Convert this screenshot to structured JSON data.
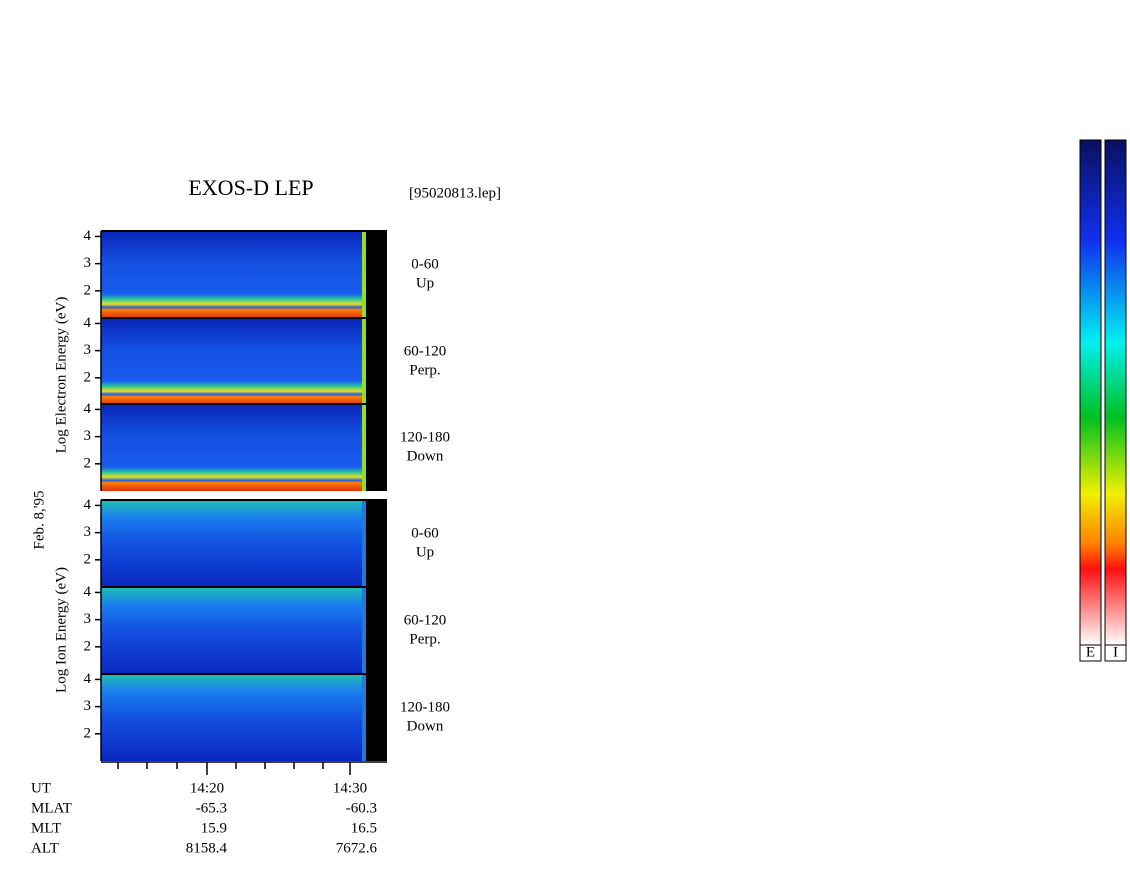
{
  "chart_data": {
    "type": "spectrogram",
    "title": "EXOS-D LEP",
    "file_label": "[95020813.lep]",
    "date_label": "Feb. 8,'95",
    "electron_axis_label": "Log Electron Energy (eV)",
    "ion_axis_label": "Log Ion Energy (eV)",
    "panels": [
      {
        "angle": "0-60",
        "direction": "Up",
        "ylim": [
          1,
          4.2
        ],
        "yticks": [
          2,
          3,
          4
        ]
      },
      {
        "angle": "60-120",
        "direction": "Perp.",
        "ylim": [
          1,
          4.2
        ],
        "yticks": [
          2,
          3,
          4
        ]
      },
      {
        "angle": "120-180",
        "direction": "Down",
        "ylim": [
          1,
          4.2
        ],
        "yticks": [
          2,
          3,
          4
        ]
      },
      {
        "angle": "0-60",
        "direction": "Up",
        "ylim": [
          1,
          4.2
        ],
        "yticks": [
          2,
          3,
          4
        ]
      },
      {
        "angle": "60-120",
        "direction": "Perp.",
        "ylim": [
          1,
          4.2
        ],
        "yticks": [
          2,
          3,
          4
        ]
      },
      {
        "angle": "120-180",
        "direction": "Down",
        "ylim": [
          1,
          4.2
        ],
        "yticks": [
          2,
          3,
          4
        ]
      }
    ],
    "ephemeris": [
      {
        "name": "UT",
        "values": [
          "14:20",
          "14:30"
        ]
      },
      {
        "name": "MLAT",
        "values": [
          -65.3,
          -60.3
        ]
      },
      {
        "name": "MLT",
        "values": [
          15.9,
          16.5
        ]
      },
      {
        "name": "ALT",
        "values": [
          8158.4,
          7672.6
        ]
      }
    ],
    "colorbar_labels": [
      "E",
      "I"
    ]
  }
}
